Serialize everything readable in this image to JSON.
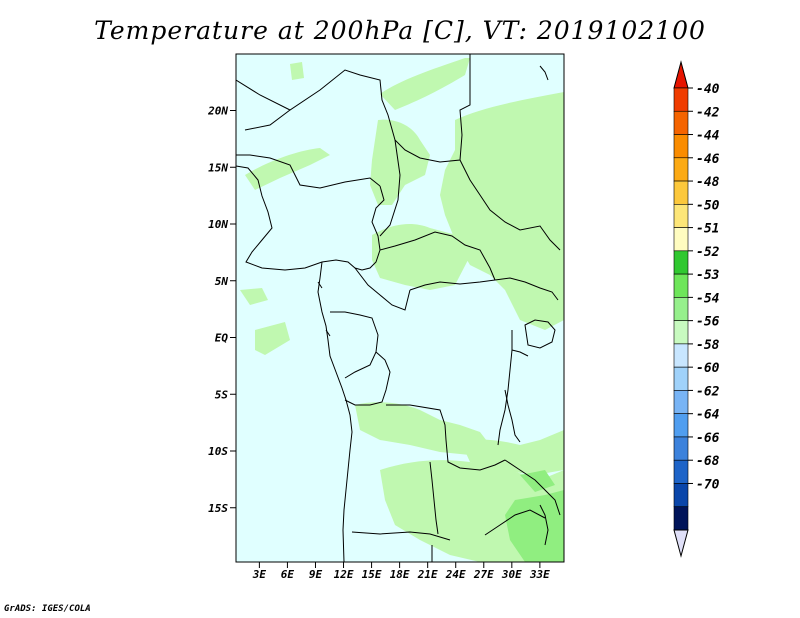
{
  "title": "Temperature at 200hPa [C], VT: 2019102100",
  "credit": "GrADS: IGES/COLA",
  "map": {
    "lat_labels": [
      "20N",
      "15N",
      "10N",
      "5N",
      "EQ",
      "5S",
      "10S",
      "15S"
    ],
    "lat_values": [
      20,
      15,
      10,
      5,
      0,
      -5,
      -10,
      -15
    ],
    "lon_labels": [
      "3E",
      "6E",
      "9E",
      "12E",
      "15E",
      "18E",
      "21E",
      "24E",
      "27E",
      "30E",
      "33E"
    ],
    "lon_values": [
      3,
      6,
      9,
      12,
      15,
      18,
      21,
      24,
      27,
      30,
      33
    ],
    "background_color": "#e0ffff",
    "field_color_54": "#c0f8b0",
    "field_color_53": "#90ee80"
  },
  "colorbar": {
    "labels": [
      "-40",
      "-42",
      "-44",
      "-46",
      "-48",
      "-50",
      "-51",
      "-52",
      "-53",
      "-54",
      "-56",
      "-58",
      "-60",
      "-62",
      "-64",
      "-66",
      "-68",
      "-70"
    ],
    "colors": [
      "#e61400",
      "#f03c00",
      "#f56400",
      "#fa8c00",
      "#fcaa14",
      "#fcc83c",
      "#fde678",
      "#fffcc0",
      "#30c830",
      "#6ee65a",
      "#96f08c",
      "#c8fac0",
      "#c8e6ff",
      "#a0d2fa",
      "#78b4f5",
      "#509ef0",
      "#3c82dc",
      "#1e64c8",
      "#0a46aa",
      "#00145a",
      "#e0e0f8"
    ]
  }
}
